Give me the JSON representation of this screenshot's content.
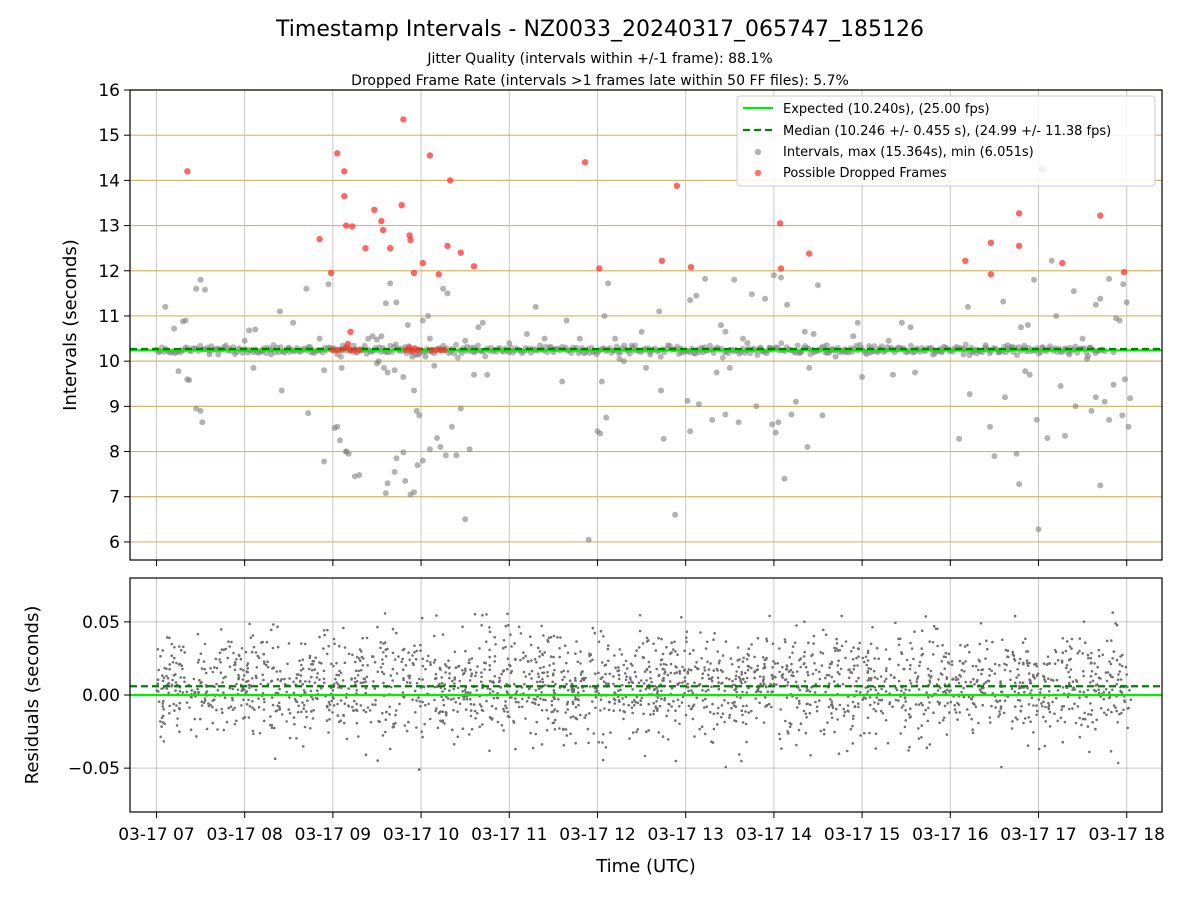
{
  "title": "Timestamp Intervals - NZ0033_20240317_065747_185126",
  "subtitle_1": "Jitter Quality (intervals within +/-1 frame): 88.1%",
  "subtitle_2": "Dropped Frame Rate (intervals >1 frames late within 50 FF files): 5.7%",
  "colors": {
    "expected": "#00ee00",
    "median": "#008000",
    "intervals": "#808080",
    "dropped": "#ff3333",
    "hgrid_top": "#d4b96a",
    "grid": "#b0b0b0",
    "residual_points": "#707070"
  },
  "chart_data": [
    {
      "type": "scatter",
      "ylabel": "Intervals (seconds)",
      "ylim": [
        5.6,
        16.0
      ],
      "xlim": [
        6.7,
        18.4
      ],
      "y_ticks": [
        6,
        7,
        8,
        9,
        10,
        11,
        12,
        13,
        14,
        15,
        16
      ],
      "grid": true,
      "legend_position": "top-right",
      "legend": [
        {
          "key": "expected",
          "label": "Expected (10.240s), (25.00 fps)"
        },
        {
          "key": "median",
          "label": "Median (10.246 +/- 0.455 s), (24.99 +/- 11.38 fps)"
        },
        {
          "key": "intervals",
          "label": "Intervals, max (15.364s), min (6.051s)"
        },
        {
          "key": "dropped",
          "label": "Possible Dropped Frames"
        }
      ],
      "expected_value": 10.24,
      "median_value": 10.246,
      "baseline_x_range": [
        7.0,
        17.75
      ],
      "dropped_frames": [
        [
          7.35,
          14.2
        ],
        [
          8.85,
          12.7
        ],
        [
          8.98,
          11.95
        ],
        [
          9.05,
          14.6
        ],
        [
          9.13,
          14.2
        ],
        [
          9.13,
          13.65
        ],
        [
          9.15,
          13.0
        ],
        [
          9.22,
          12.98
        ],
        [
          9.2,
          10.65
        ],
        [
          9.37,
          12.5
        ],
        [
          9.47,
          13.35
        ],
        [
          9.55,
          13.1
        ],
        [
          9.57,
          12.9
        ],
        [
          9.65,
          12.5
        ],
        [
          9.8,
          15.35
        ],
        [
          9.78,
          13.45
        ],
        [
          9.87,
          12.78
        ],
        [
          9.88,
          12.68
        ],
        [
          9.92,
          11.95
        ],
        [
          10.02,
          12.17
        ],
        [
          10.1,
          14.55
        ],
        [
          10.2,
          11.92
        ],
        [
          10.3,
          12.55
        ],
        [
          10.33,
          14.0
        ],
        [
          10.45,
          12.4
        ],
        [
          10.6,
          12.1
        ],
        [
          11.86,
          14.4
        ],
        [
          12.02,
          12.05
        ],
        [
          12.73,
          12.22
        ],
        [
          12.9,
          13.88
        ],
        [
          13.06,
          12.08
        ],
        [
          14.07,
          13.05
        ],
        [
          14.08,
          12.05
        ],
        [
          14.4,
          12.38
        ],
        [
          16.17,
          12.22
        ],
        [
          16.46,
          11.92
        ],
        [
          16.46,
          12.62
        ],
        [
          16.78,
          13.27
        ],
        [
          16.78,
          12.55
        ],
        [
          17.04,
          14.25
        ],
        [
          17.27,
          12.17
        ],
        [
          17.7,
          13.22
        ],
        [
          17.97,
          11.97
        ],
        [
          9.0,
          10.25
        ],
        [
          9.05,
          10.25
        ],
        [
          9.1,
          10.25
        ],
        [
          9.15,
          10.3
        ],
        [
          9.2,
          10.25
        ],
        [
          9.25,
          10.25
        ],
        [
          9.3,
          10.25
        ],
        [
          9.17,
          10.38
        ],
        [
          9.83,
          10.25
        ],
        [
          9.87,
          10.3
        ],
        [
          9.9,
          10.22
        ],
        [
          9.93,
          10.28
        ],
        [
          9.97,
          10.25
        ],
        [
          10.12,
          10.25
        ],
        [
          10.17,
          10.25
        ],
        [
          10.22,
          10.25
        ],
        [
          10.26,
          10.25
        ]
      ],
      "intervals": [
        [
          7.1,
          11.2
        ],
        [
          7.2,
          10.72
        ],
        [
          7.3,
          10.88
        ],
        [
          7.33,
          10.9
        ],
        [
          7.25,
          9.78
        ],
        [
          7.35,
          9.6
        ],
        [
          7.37,
          9.58
        ],
        [
          7.45,
          11.6
        ],
        [
          7.5,
          11.8
        ],
        [
          7.55,
          11.58
        ],
        [
          7.45,
          8.95
        ],
        [
          7.5,
          8.9
        ],
        [
          7.52,
          8.65
        ],
        [
          7.6,
          10.15
        ],
        [
          7.7,
          10.15
        ],
        [
          8.0,
          10.45
        ],
        [
          8.05,
          10.68
        ],
        [
          8.1,
          9.85
        ],
        [
          8.2,
          10.25
        ],
        [
          8.3,
          10.15
        ],
        [
          8.4,
          11.1
        ],
        [
          8.42,
          9.35
        ],
        [
          8.5,
          10.3
        ],
        [
          8.7,
          11.6
        ],
        [
          8.72,
          8.85
        ],
        [
          8.75,
          10.2
        ],
        [
          8.85,
          10.5
        ],
        [
          8.9,
          9.8
        ],
        [
          8.95,
          11.7
        ],
        [
          8.9,
          7.78
        ],
        [
          9.1,
          9.85
        ],
        [
          9.15,
          8.0
        ],
        [
          9.18,
          7.95
        ],
        [
          9.25,
          7.45
        ],
        [
          9.3,
          7.48
        ],
        [
          9.05,
          8.55
        ],
        [
          9.08,
          8.25
        ],
        [
          9.15,
          8.0
        ],
        [
          9.02,
          8.52
        ],
        [
          9.4,
          10.5
        ],
        [
          9.5,
          10.48
        ],
        [
          9.55,
          10.55
        ],
        [
          9.6,
          11.28
        ],
        [
          9.62,
          9.75
        ],
        [
          9.65,
          11.72
        ],
        [
          9.7,
          9.8
        ],
        [
          9.72,
          11.3
        ],
        [
          9.75,
          10.25
        ],
        [
          9.8,
          9.65
        ],
        [
          9.85,
          10.8
        ],
        [
          9.9,
          10.1
        ],
        [
          9.92,
          9.35
        ],
        [
          9.95,
          8.9
        ],
        [
          9.98,
          8.8
        ],
        [
          10.05,
          10.1
        ],
        [
          10.08,
          11.0
        ],
        [
          10.1,
          10.5
        ],
        [
          10.15,
          9.9
        ],
        [
          9.6,
          7.08
        ],
        [
          9.62,
          7.3
        ],
        [
          9.7,
          7.55
        ],
        [
          9.72,
          7.85
        ],
        [
          9.8,
          7.98
        ],
        [
          9.82,
          7.35
        ],
        [
          9.88,
          7.05
        ],
        [
          9.92,
          7.1
        ],
        [
          9.96,
          7.7
        ],
        [
          10.02,
          7.8
        ],
        [
          10.1,
          8.05
        ],
        [
          10.18,
          8.3
        ],
        [
          10.22,
          8.1
        ],
        [
          10.28,
          7.92
        ],
        [
          10.35,
          8.55
        ],
        [
          10.4,
          7.92
        ],
        [
          10.45,
          8.95
        ],
        [
          10.5,
          6.5
        ],
        [
          10.55,
          8.05
        ],
        [
          10.25,
          11.6
        ],
        [
          10.3,
          11.5
        ],
        [
          10.02,
          10.9
        ],
        [
          10.5,
          10.45
        ],
        [
          10.6,
          9.7
        ],
        [
          10.65,
          10.75
        ],
        [
          10.7,
          10.85
        ],
        [
          10.75,
          9.7
        ],
        [
          11.0,
          10.4
        ],
        [
          11.2,
          10.6
        ],
        [
          11.3,
          11.2
        ],
        [
          11.4,
          10.5
        ],
        [
          11.6,
          9.55
        ],
        [
          11.65,
          10.9
        ],
        [
          11.8,
          10.5
        ],
        [
          11.9,
          6.05
        ],
        [
          12.0,
          8.45
        ],
        [
          12.03,
          8.4
        ],
        [
          12.05,
          9.55
        ],
        [
          12.08,
          11.0
        ],
        [
          12.1,
          8.75
        ],
        [
          12.12,
          11.72
        ],
        [
          12.2,
          10.5
        ],
        [
          12.3,
          10.0
        ],
        [
          12.4,
          10.3
        ],
        [
          12.5,
          10.65
        ],
        [
          12.55,
          9.85
        ],
        [
          12.6,
          10.15
        ],
        [
          12.7,
          11.1
        ],
        [
          12.72,
          9.35
        ],
        [
          12.75,
          8.28
        ],
        [
          12.88,
          6.6
        ],
        [
          12.95,
          10.2
        ],
        [
          13.02,
          9.12
        ],
        [
          13.05,
          11.35
        ],
        [
          13.05,
          8.45
        ],
        [
          13.12,
          11.45
        ],
        [
          13.15,
          9.05
        ],
        [
          13.22,
          11.82
        ],
        [
          13.3,
          8.7
        ],
        [
          13.35,
          9.75
        ],
        [
          13.4,
          10.8
        ],
        [
          13.45,
          10.65
        ],
        [
          13.45,
          8.82
        ],
        [
          13.5,
          9.85
        ],
        [
          13.55,
          11.8
        ],
        [
          13.6,
          8.65
        ],
        [
          13.65,
          10.5
        ],
        [
          13.7,
          10.4
        ],
        [
          13.75,
          11.48
        ],
        [
          13.8,
          9.0
        ],
        [
          13.85,
          10.3
        ],
        [
          13.9,
          11.38
        ],
        [
          13.98,
          8.6
        ],
        [
          14.0,
          11.9
        ],
        [
          14.02,
          8.42
        ],
        [
          14.05,
          8.65
        ],
        [
          14.08,
          11.85
        ],
        [
          14.12,
          7.4
        ],
        [
          14.15,
          11.25
        ],
        [
          14.2,
          8.82
        ],
        [
          14.25,
          9.1
        ],
        [
          14.3,
          10.2
        ],
        [
          14.35,
          10.65
        ],
        [
          14.38,
          8.1
        ],
        [
          14.4,
          9.85
        ],
        [
          14.45,
          10.6
        ],
        [
          14.5,
          11.68
        ],
        [
          14.55,
          8.8
        ],
        [
          14.6,
          10.35
        ],
        [
          14.65,
          10.25
        ],
        [
          14.7,
          10.1
        ],
        [
          14.8,
          10.2
        ],
        [
          14.9,
          10.55
        ],
        [
          14.95,
          10.85
        ],
        [
          15.0,
          9.65
        ],
        [
          15.1,
          10.2
        ],
        [
          15.2,
          10.25
        ],
        [
          15.3,
          10.45
        ],
        [
          15.35,
          9.7
        ],
        [
          15.4,
          10.25
        ],
        [
          15.45,
          10.85
        ],
        [
          15.55,
          10.75
        ],
        [
          15.6,
          9.75
        ],
        [
          15.8,
          10.25
        ],
        [
          15.9,
          10.2
        ],
        [
          16.1,
          8.28
        ],
        [
          16.15,
          10.15
        ],
        [
          16.2,
          11.2
        ],
        [
          16.22,
          9.27
        ],
        [
          16.3,
          10.25
        ],
        [
          16.4,
          10.35
        ],
        [
          16.45,
          8.55
        ],
        [
          16.5,
          7.9
        ],
        [
          16.55,
          10.2
        ],
        [
          16.6,
          11.32
        ],
        [
          16.62,
          9.2
        ],
        [
          16.7,
          10.3
        ],
        [
          16.75,
          7.95
        ],
        [
          16.78,
          7.28
        ],
        [
          16.8,
          10.75
        ],
        [
          16.85,
          9.78
        ],
        [
          16.88,
          10.8
        ],
        [
          16.9,
          9.7
        ],
        [
          16.95,
          11.8
        ],
        [
          16.98,
          8.7
        ],
        [
          17.0,
          6.28
        ],
        [
          17.05,
          10.3
        ],
        [
          17.1,
          8.3
        ],
        [
          17.15,
          12.22
        ],
        [
          17.2,
          11.0
        ],
        [
          17.25,
          9.45
        ],
        [
          17.3,
          8.35
        ],
        [
          17.4,
          11.55
        ],
        [
          17.42,
          9.0
        ],
        [
          17.5,
          10.5
        ],
        [
          17.55,
          10.05
        ],
        [
          17.6,
          8.9
        ],
        [
          17.65,
          11.25
        ],
        [
          17.65,
          9.2
        ],
        [
          17.7,
          11.38
        ],
        [
          17.7,
          7.25
        ],
        [
          17.75,
          9.1
        ],
        [
          17.8,
          11.82
        ],
        [
          17.8,
          8.7
        ],
        [
          17.85,
          9.48
        ],
        [
          17.88,
          10.95
        ],
        [
          17.92,
          10.9
        ],
        [
          17.95,
          8.8
        ],
        [
          17.96,
          11.7
        ],
        [
          17.98,
          9.6
        ],
        [
          18.0,
          11.3
        ],
        [
          18.02,
          8.55
        ],
        [
          18.04,
          9.18
        ],
        [
          8.12,
          10.7
        ],
        [
          8.55,
          10.85
        ],
        [
          9.35,
          10.25
        ],
        [
          9.45,
          10.55
        ],
        [
          9.5,
          9.95
        ],
        [
          9.52,
          10.0
        ],
        [
          9.58,
          9.85
        ],
        [
          10.6,
          10.3
        ],
        [
          11.5,
          10.2
        ],
        [
          12.25,
          10.05
        ],
        [
          13.2,
          10.2
        ],
        [
          13.95,
          10.3
        ],
        [
          16.25,
          10.2
        ],
        [
          16.65,
          10.35
        ],
        [
          17.35,
          10.15
        ],
        [
          17.58,
          10.3
        ],
        [
          17.85,
          10.2
        ]
      ]
    },
    {
      "type": "scatter",
      "ylabel": "Residuals (seconds)",
      "xlabel": "Time (UTC)",
      "ylim": [
        -0.08,
        0.08
      ],
      "xlim": [
        6.7,
        18.4
      ],
      "y_ticks": [
        0.05,
        0.0,
        -0.05
      ],
      "y_tick_labels": [
        "0.05",
        "0.00",
        "−0.05"
      ],
      "x_ticks": [
        7,
        8,
        9,
        10,
        11,
        12,
        13,
        14,
        15,
        16,
        17,
        18
      ],
      "x_tick_labels": [
        "03-17 07",
        "03-17 08",
        "03-17 09",
        "03-17 10",
        "03-17 11",
        "03-17 12",
        "03-17 13",
        "03-17 14",
        "03-17 15",
        "03-17 16",
        "03-17 17",
        "03-17 18"
      ],
      "grid": true,
      "expected_value": 0.0,
      "median_value": 0.006,
      "residual_spread_std": 0.018,
      "residual_x_range": [
        7.0,
        18.05
      ],
      "residual_point_count": 2300
    }
  ]
}
